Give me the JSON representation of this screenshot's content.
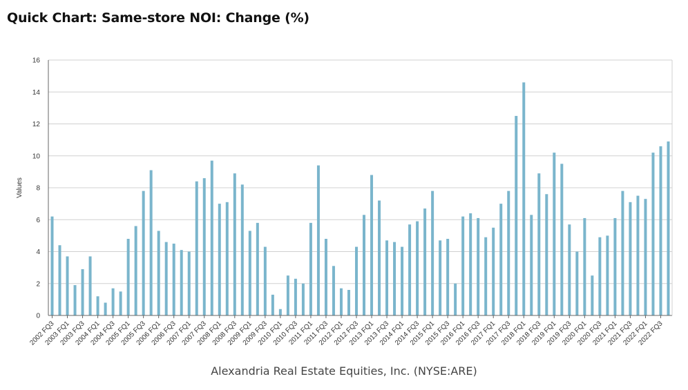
{
  "header": {
    "title": "Quick Chart: Same-store NOI: Change (%)"
  },
  "footer": {
    "company": "Alexandria Real Estate Equities, Inc. (NYSE:ARE)"
  },
  "colors": {
    "bar": "#7ab5cc",
    "grid": "#d0d0d0",
    "axis": "#666666"
  },
  "chart_data": {
    "type": "bar",
    "title": "Same-store NOI: Change (%)",
    "xlabel": "",
    "ylabel": "Values",
    "ylim": [
      0,
      16
    ],
    "yticks": [
      0,
      2,
      4,
      6,
      8,
      10,
      12,
      14,
      16
    ],
    "grid": true,
    "categories": [
      "2002 FQ3",
      "2002 FQ4",
      "2003 FQ1",
      "2003 FQ2",
      "2003 FQ3",
      "2003 FQ4",
      "2004 FQ1",
      "2004 FQ2",
      "2004 FQ3",
      "2004 FQ4",
      "2005 FQ1",
      "2005 FQ2",
      "2005 FQ3",
      "2005 FQ4",
      "2006 FQ1",
      "2006 FQ2",
      "2006 FQ3",
      "2006 FQ4",
      "2007 FQ1",
      "2007 FQ2",
      "2007 FQ3",
      "2007 FQ4",
      "2008 FQ1",
      "2008 FQ2",
      "2008 FQ3",
      "2008 FQ4",
      "2009 FQ1",
      "2009 FQ2",
      "2009 FQ3",
      "2009 FQ4",
      "2010 FQ1",
      "2010 FQ2",
      "2010 FQ3",
      "2010 FQ4",
      "2011 FQ1",
      "2011 FQ2",
      "2011 FQ3",
      "2011 FQ4",
      "2012 FQ1",
      "2012 FQ2",
      "2012 FQ3",
      "2012 FQ4",
      "2013 FQ1",
      "2013 FQ2",
      "2013 FQ3",
      "2013 FQ4",
      "2014 FQ1",
      "2014 FQ2",
      "2014 FQ3",
      "2014 FQ4",
      "2015 FQ1",
      "2015 FQ2",
      "2015 FQ3",
      "2015 FQ4",
      "2016 FQ1",
      "2016 FQ2",
      "2016 FQ3",
      "2016 FQ4",
      "2017 FQ1",
      "2017 FQ2",
      "2017 FQ3",
      "2017 FQ4",
      "2018 FQ1",
      "2018 FQ2",
      "2018 FQ3",
      "2018 FQ4",
      "2019 FQ1",
      "2019 FQ2",
      "2019 FQ3",
      "2019 FQ4",
      "2020 FQ1",
      "2020 FQ2",
      "2020 FQ3",
      "2020 FQ4",
      "2021 FQ1",
      "2021 FQ2",
      "2021 FQ3",
      "2021 FQ4",
      "2022 FQ1",
      "2022 FQ2",
      "2022 FQ3",
      "2022 FQ4"
    ],
    "tick_labels": [
      "2002 FQ3",
      "2003 FQ1",
      "2003 FQ3",
      "2004 FQ1",
      "2004 FQ3",
      "2005 FQ1",
      "2005 FQ3",
      "2006 FQ1",
      "2006 FQ3",
      "2007 FQ1",
      "2007 FQ3",
      "2008 FQ1",
      "2008 FQ3",
      "2009 FQ1",
      "2009 FQ3",
      "2010 FQ1",
      "2010 FQ3",
      "2011 FQ1",
      "2011 FQ3",
      "2012 FQ1",
      "2012 FQ3",
      "2013 FQ1",
      "2013 FQ3",
      "2014 FQ1",
      "2014 FQ3",
      "2015 FQ1",
      "2015 FQ3",
      "2016 FQ1",
      "2016 FQ3",
      "2017 FQ1",
      "2017 FQ3",
      "2018 FQ1",
      "2018 FQ3",
      "2019 FQ1",
      "2019 FQ3",
      "2020 FQ1",
      "2020 FQ3",
      "2021 FQ1",
      "2021 FQ3",
      "2022 FQ1",
      "2022 FQ3"
    ],
    "values": [
      6.2,
      4.4,
      3.7,
      1.9,
      2.9,
      3.7,
      1.2,
      0.8,
      1.7,
      1.5,
      4.8,
      5.6,
      7.8,
      9.1,
      5.3,
      4.6,
      4.5,
      4.1,
      4.0,
      8.4,
      8.6,
      9.7,
      7.0,
      7.1,
      8.9,
      8.2,
      5.3,
      5.8,
      4.3,
      1.3,
      0.4,
      2.5,
      2.3,
      2.0,
      5.8,
      9.4,
      4.8,
      3.1,
      1.7,
      1.6,
      4.3,
      6.3,
      8.8,
      7.2,
      4.7,
      4.6,
      4.3,
      5.7,
      5.9,
      6.7,
      7.8,
      4.7,
      4.8,
      2.0,
      6.2,
      6.4,
      6.1,
      4.9,
      5.5,
      7.0,
      7.8,
      12.5,
      14.6,
      6.3,
      8.9,
      7.6,
      10.2,
      9.5,
      5.7,
      4.0,
      6.1,
      2.5,
      4.9,
      5.0,
      6.1,
      7.8,
      7.1,
      7.5,
      7.3,
      10.2,
      10.6,
      10.9
    ]
  }
}
